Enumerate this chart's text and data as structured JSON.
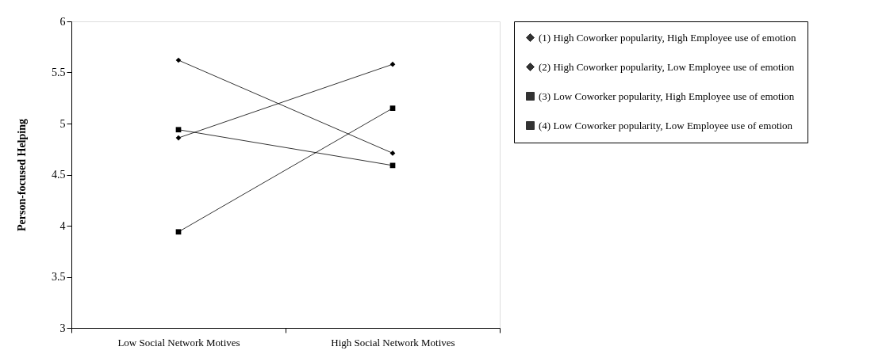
{
  "chart_data": {
    "type": "line",
    "ylabel": "Person-focused Helping",
    "categories": [
      "Low Social Network Motives",
      "High Social Network Motives"
    ],
    "ylim": [
      3,
      6
    ],
    "yticks": [
      3,
      3.5,
      4,
      4.5,
      5,
      5.5,
      6
    ],
    "grid": false,
    "legend": "right",
    "line_style": "solid",
    "series": [
      {
        "name": "(1) High Coworker popularity, High Employee use of emotion",
        "color": "#000000",
        "marker": "diamond",
        "values": [
          5.62,
          4.71
        ]
      },
      {
        "name": "(2) High Coworker popularity, Low Employee use of emotion",
        "color": "#000000",
        "marker": "diamond",
        "values": [
          4.86,
          5.58
        ]
      },
      {
        "name": "(3) Low Coworker popularity, High Employee use of emotion",
        "color": "#000000",
        "marker": "square",
        "values": [
          3.94,
          5.15
        ]
      },
      {
        "name": "(4) Low Coworker popularity, Low Employee use of emotion",
        "color": "#000000",
        "marker": "square",
        "values": [
          4.94,
          4.59
        ]
      }
    ]
  }
}
